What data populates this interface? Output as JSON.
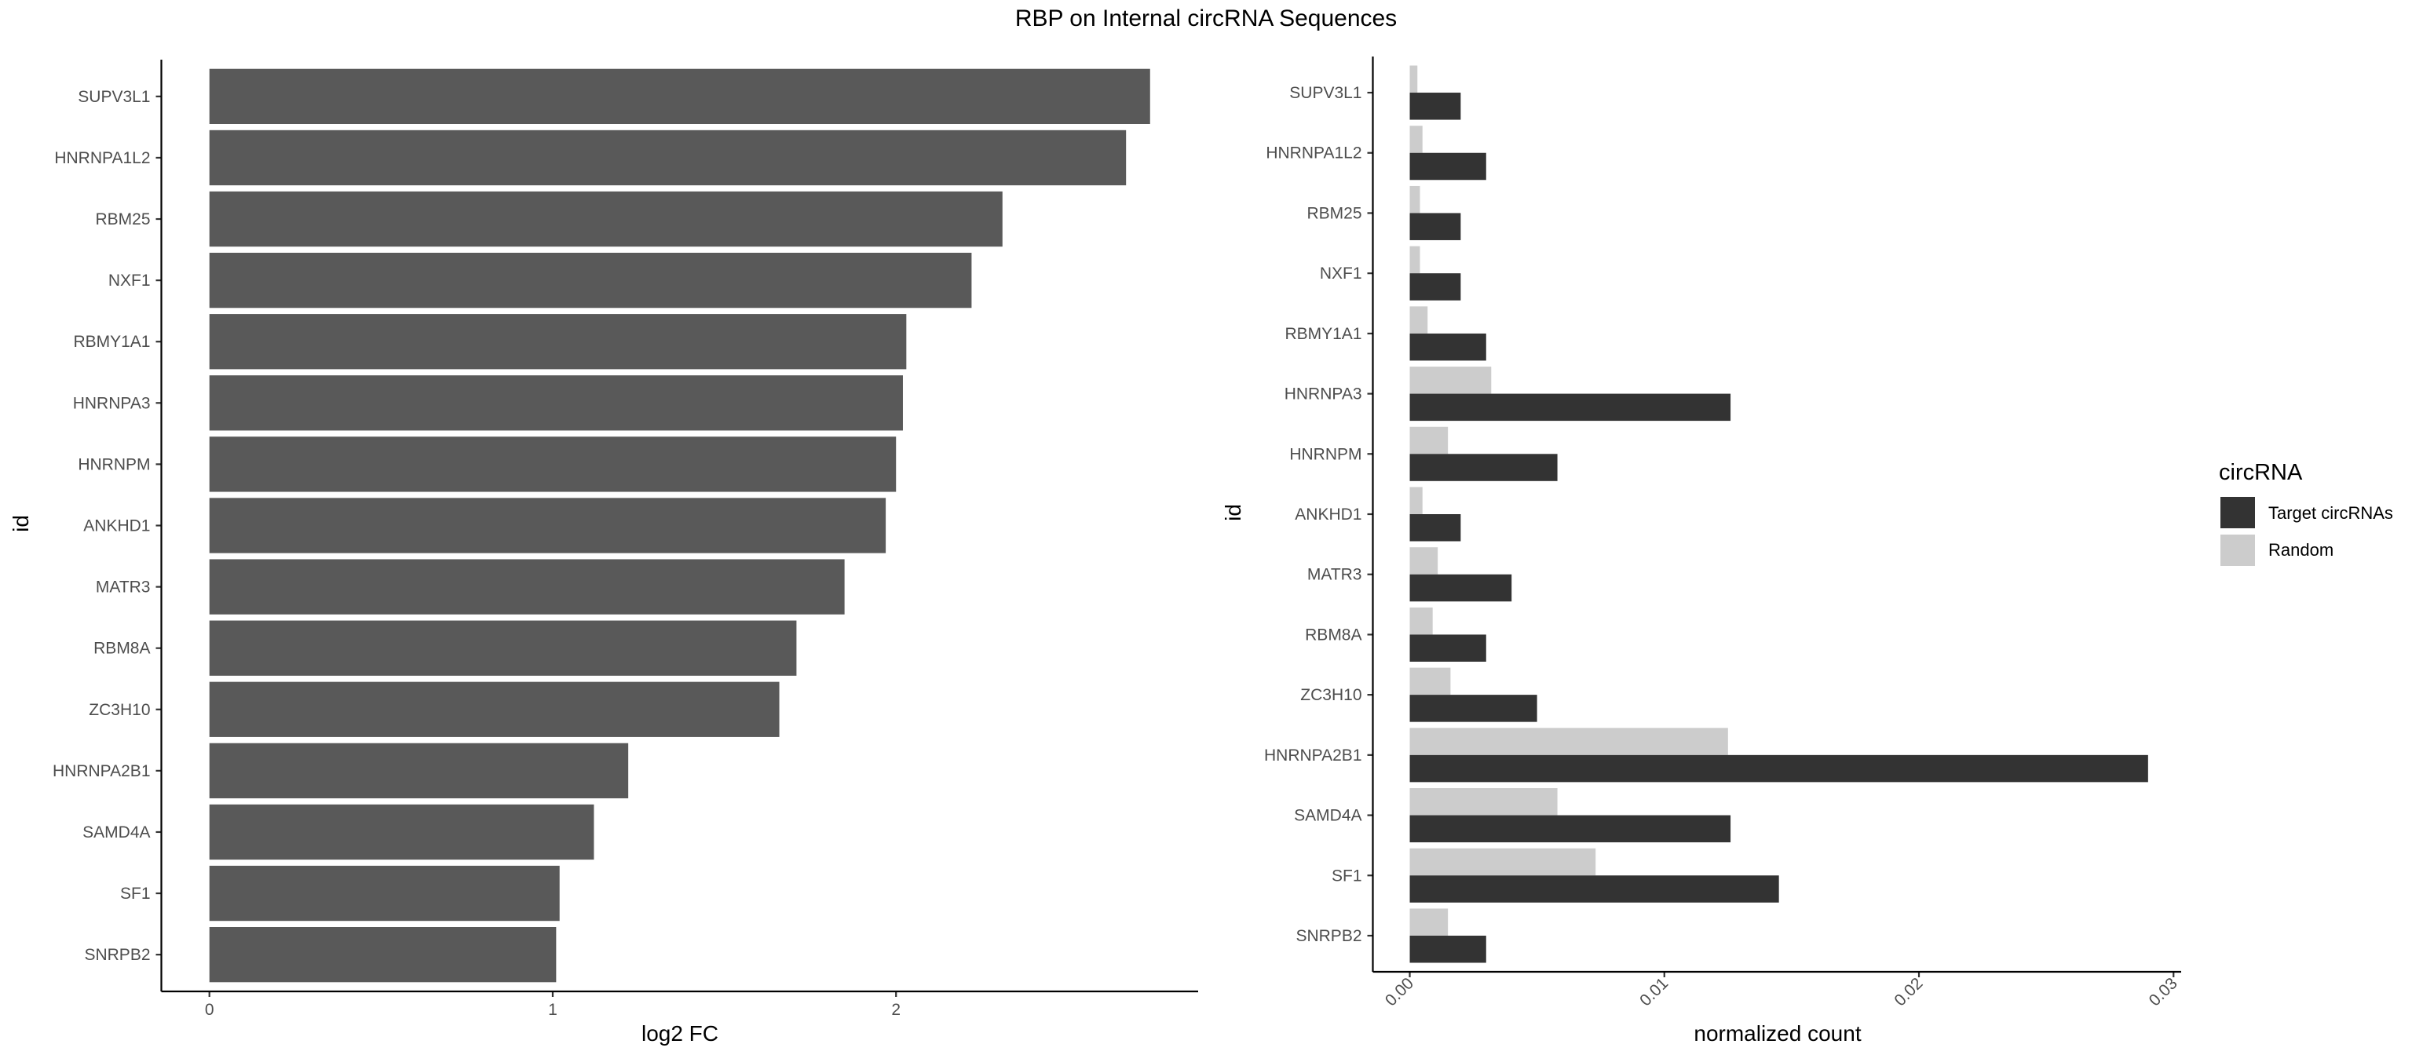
{
  "title": "RBP on Internal circRNA Sequences",
  "colors": {
    "fc_bar": "#595959",
    "target": "#333333",
    "random": "#cccccc",
    "axis": "#000000",
    "tick_text": "#4d4d4d"
  },
  "legend": {
    "title": "circRNA",
    "items": [
      {
        "label": "Target circRNAs",
        "color": "#333333"
      },
      {
        "label": "Random",
        "color": "#cccccc"
      }
    ]
  },
  "chart_data": [
    {
      "type": "bar",
      "orientation": "horizontal",
      "categories": [
        "SUPV3L1",
        "HNRNPA1L2",
        "RBM25",
        "NXF1",
        "RBMY1A1",
        "HNRNPA3",
        "HNRNPM",
        "ANKHD1",
        "MATR3",
        "RBM8A",
        "ZC3H10",
        "HNRNPA2B1",
        "SAMD4A",
        "SF1",
        "SNRPB2"
      ],
      "values": [
        2.74,
        2.67,
        2.31,
        2.22,
        2.03,
        2.02,
        2.0,
        1.97,
        1.85,
        1.71,
        1.66,
        1.22,
        1.12,
        1.02,
        1.01
      ],
      "xlabel": "log2 FC",
      "ylabel": "id",
      "xlim": [
        -0.14,
        2.88
      ],
      "xticks": [
        0,
        1,
        2
      ],
      "xtick_labels": [
        "0",
        "1",
        "2"
      ],
      "grid": false
    },
    {
      "type": "bar",
      "orientation": "horizontal",
      "grouped": true,
      "categories": [
        "SUPV3L1",
        "HNRNPA1L2",
        "RBM25",
        "NXF1",
        "RBMY1A1",
        "HNRNPA3",
        "HNRNPM",
        "ANKHD1",
        "MATR3",
        "RBM8A",
        "ZC3H10",
        "HNRNPA2B1",
        "SAMD4A",
        "SF1",
        "SNRPB2"
      ],
      "series": [
        {
          "name": "Target circRNAs",
          "values": [
            0.002,
            0.003,
            0.002,
            0.002,
            0.003,
            0.0126,
            0.0058,
            0.002,
            0.004,
            0.003,
            0.005,
            0.029,
            0.0126,
            0.0145,
            0.003
          ]
        },
        {
          "name": "Random",
          "values": [
            0.0003,
            0.0005,
            0.0004,
            0.0004,
            0.0007,
            0.0032,
            0.0015,
            0.0005,
            0.0011,
            0.0009,
            0.0016,
            0.0125,
            0.0058,
            0.0073,
            0.0015
          ]
        }
      ],
      "xlabel": "normalized count",
      "ylabel": "id",
      "xlim": [
        -0.00145,
        0.0303
      ],
      "xticks": [
        0.0,
        0.01,
        0.02,
        0.03
      ],
      "xtick_labels": [
        "0.00",
        "0.01",
        "0.02",
        "0.03"
      ],
      "grid": false,
      "legend_position": "right"
    }
  ]
}
